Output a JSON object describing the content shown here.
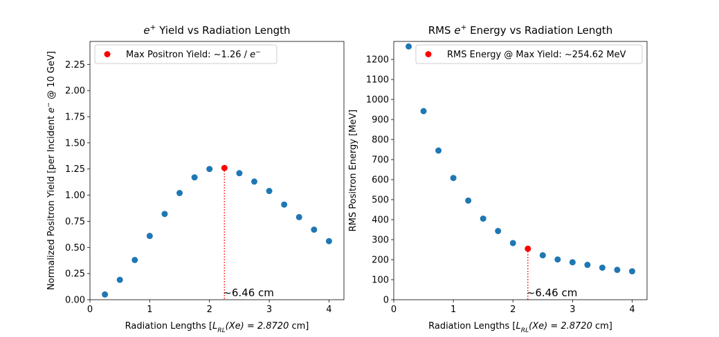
{
  "chart_data": [
    {
      "type": "scatter",
      "title": {
        "pre": "",
        "sym": "e",
        "sup": "+",
        "post": " Yield vs Radiation Length"
      },
      "xlabel": {
        "pre": "Radiation Lengths [",
        "math": "L",
        "sub": "RL",
        "math2": "(Xe) = 2.8720",
        "post": " cm]"
      },
      "ylabel": {
        "pre": "Normalized Positron Yield [per Incident ",
        "sym": "e",
        "sup": "−",
        "post": " @ 10 GeV]"
      },
      "xlim": [
        0,
        4.25
      ],
      "ylim": [
        0,
        2.47
      ],
      "xticks": [
        0,
        1,
        2,
        3,
        4
      ],
      "yticks": [
        0.0,
        0.25,
        0.5,
        0.75,
        1.0,
        1.25,
        1.5,
        1.75,
        2.0,
        2.25
      ],
      "series_color": "#1f77b4",
      "x": [
        0.25,
        0.5,
        0.75,
        1.0,
        1.25,
        1.5,
        1.75,
        2.0,
        2.5,
        2.75,
        3.0,
        3.25,
        3.5,
        3.75,
        4.0
      ],
      "y": [
        0.05,
        0.19,
        0.38,
        0.61,
        0.82,
        1.02,
        1.17,
        1.25,
        1.21,
        1.13,
        1.04,
        0.91,
        0.79,
        0.67,
        0.56
      ],
      "highlight": {
        "x": 2.25,
        "y": 1.26,
        "color": "#ff0000"
      },
      "annotation": "~6.46 cm",
      "legend": {
        "loc": "upper left",
        "pre": "Max Positron Yield: ~1.26 / ",
        "sym": "e",
        "sup": "−"
      }
    },
    {
      "type": "scatter",
      "title": {
        "pre": "RMS ",
        "sym": "e",
        "sup": "+",
        "post": " Energy vs Radiation Length"
      },
      "xlabel": {
        "pre": "Radiation Lengths [",
        "math": "L",
        "sub": "RL",
        "math2": "(Xe) = 2.8720",
        "post": " cm]"
      },
      "ylabel": {
        "pre": "RMS Positron Energy [MeV]",
        "sym": "",
        "sup": "",
        "post": ""
      },
      "xlim": [
        0,
        4.25
      ],
      "ylim": [
        0,
        1290
      ],
      "xticks": [
        0,
        1,
        2,
        3,
        4
      ],
      "yticks": [
        0,
        100,
        200,
        300,
        400,
        500,
        600,
        700,
        800,
        900,
        1000,
        1100,
        1200
      ],
      "series_color": "#1f77b4",
      "x": [
        0.25,
        0.5,
        0.75,
        1.0,
        1.25,
        1.5,
        1.75,
        2.0,
        2.5,
        2.75,
        3.0,
        3.25,
        3.5,
        3.75,
        4.0
      ],
      "y": [
        1265,
        942,
        745,
        608,
        495,
        405,
        343,
        283,
        222,
        201,
        187,
        174,
        160,
        149,
        142
      ],
      "highlight": {
        "x": 2.25,
        "y": 254.62,
        "color": "#ff0000"
      },
      "annotation": "~6.46 cm",
      "legend": {
        "loc": "upper right",
        "pre": "RMS Energy @ Max Yield: ~254.62 MeV",
        "sym": "",
        "sup": ""
      }
    }
  ]
}
